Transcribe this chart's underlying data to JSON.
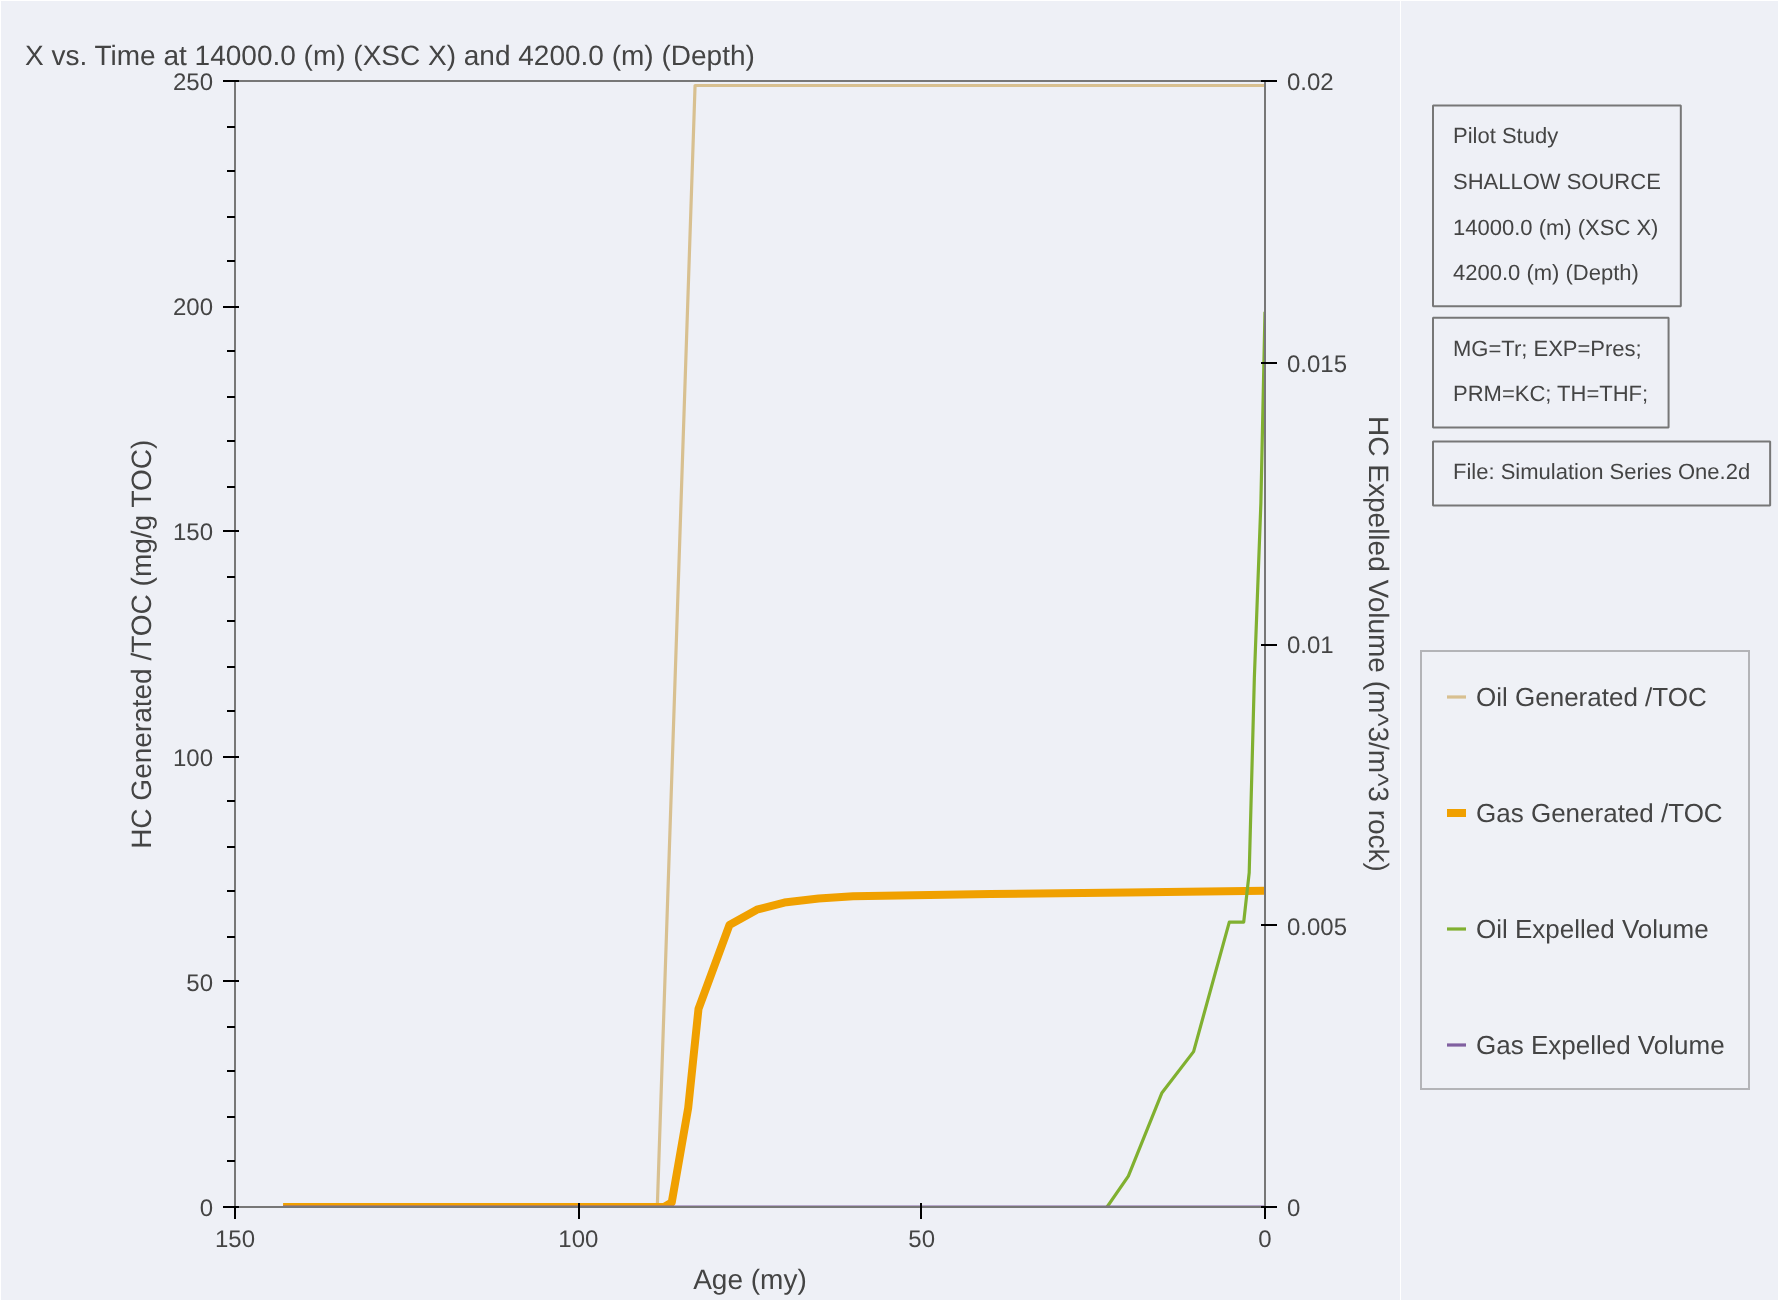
{
  "chart_data": {
    "type": "line",
    "title": "X vs. Time at 14000.0 (m) (XSC X) and 4200.0 (m) (Depth)",
    "xlabel": "Age (my)",
    "ylabel": "HC Generated /TOC (mg/g TOC)",
    "y2label": "HC Expelled Volume (m^3/m^3 rock)",
    "xlim": [
      150,
      0
    ],
    "xticks": [
      150,
      100,
      50,
      0
    ],
    "ylim": [
      0,
      250
    ],
    "yticks": [
      0,
      50,
      100,
      150,
      200,
      250
    ],
    "y2lim": [
      0,
      0.02
    ],
    "y2ticks": [
      0,
      0.005,
      0.01,
      0.015,
      0.02
    ],
    "grid": false,
    "legend": "right",
    "marker": "none",
    "line_style": "solid",
    "annotations": [
      "Pilot Study\nSHALLOW SOURCE\n14000.0 (m) (XSC X)\n4200.0 (m) (Depth)",
      "MG=Tr; EXP=Pres;\nPRM=KC; TH=THF;",
      "File: Simulation Series One.2d"
    ],
    "series": [
      {
        "name": "Oil Generated /TOC",
        "color": "#d8c090",
        "x": [
          143,
          88.5,
          83,
          0
        ],
        "values": [
          0,
          0,
          249,
          249
        ]
      },
      {
        "name": "Gas Generated /TOC",
        "color": "#f0a000",
        "x": [
          143,
          87.5,
          86.4,
          84,
          82.5,
          78,
          74,
          70,
          65,
          60,
          40,
          20,
          0
        ],
        "values": [
          0,
          0,
          1,
          22,
          44,
          62.6,
          66,
          67.6,
          68.5,
          69,
          69.5,
          69.8,
          70.2
        ]
      },
      {
        "name": "Oil Expelled Volume",
        "color": "#80b030",
        "axis": "y2",
        "x": [
          23,
          19.9,
          15,
          10.4,
          5.2,
          3.1,
          2.3,
          1.55,
          0.6,
          0
        ],
        "values": [
          0,
          0.00055,
          0.00203,
          0.00276,
          0.00506,
          0.00506,
          0.00594,
          0.0094,
          0.0125,
          0.0159
        ]
      },
      {
        "name": "Gas Expelled Volume",
        "color": "#8060a0",
        "axis": "y2",
        "x": [
          143,
          0
        ],
        "values": [
          0,
          0
        ]
      }
    ]
  }
}
